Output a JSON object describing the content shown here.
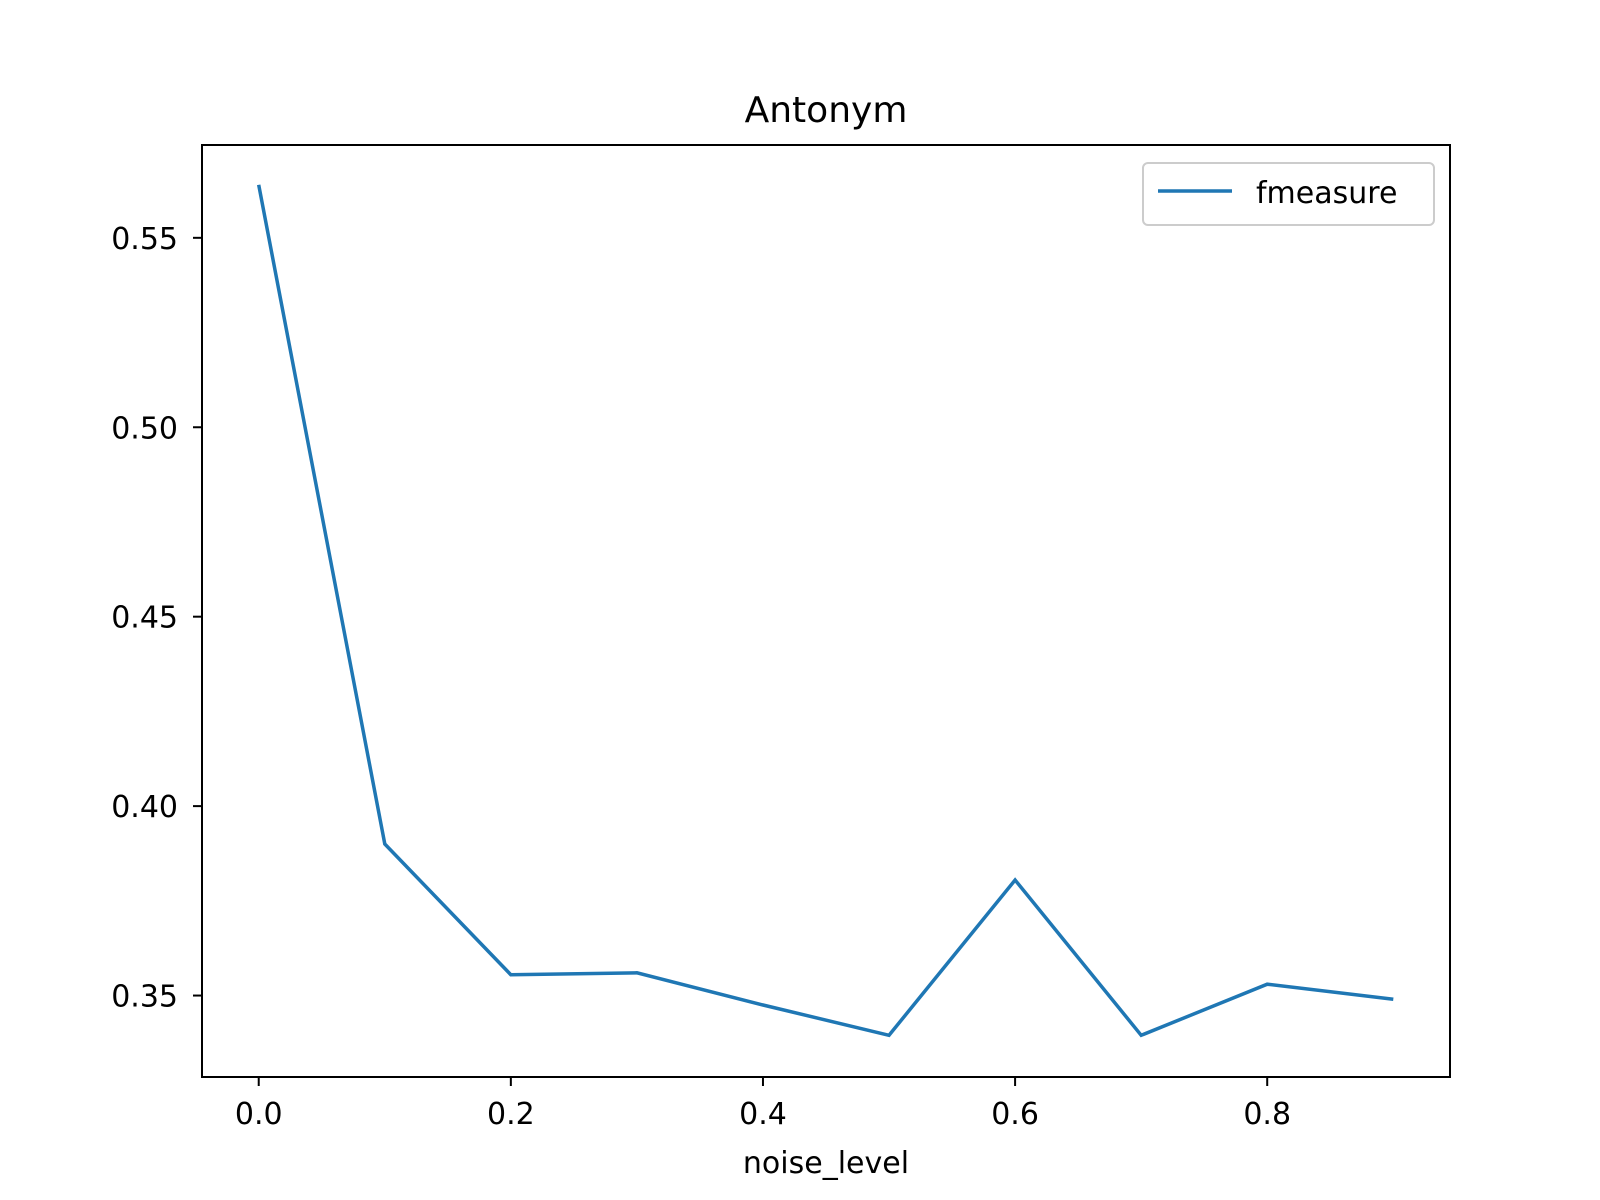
{
  "chart_data": {
    "type": "line",
    "title": "Antonym",
    "xlabel": "noise_level",
    "ylabel": "",
    "x": [
      0.0,
      0.1,
      0.2,
      0.3,
      0.4,
      0.5,
      0.6,
      0.7,
      0.8,
      0.9
    ],
    "series": [
      {
        "name": "fmeasure",
        "color": "#1f77b4",
        "values": [
          0.564,
          0.39,
          0.3555,
          0.356,
          0.3475,
          0.3395,
          0.3805,
          0.3395,
          0.353,
          0.349
        ]
      }
    ],
    "xlim": [
      -0.045,
      0.945
    ],
    "ylim": [
      0.3285,
      0.5745
    ],
    "xticks": [
      0.0,
      0.2,
      0.4,
      0.6,
      0.8
    ],
    "xtick_labels": [
      "0.0",
      "0.2",
      "0.4",
      "0.6",
      "0.8"
    ],
    "yticks": [
      0.35,
      0.4,
      0.45,
      0.5,
      0.55
    ],
    "ytick_labels": [
      "0.35",
      "0.40",
      "0.45",
      "0.50",
      "0.55"
    ],
    "grid": false,
    "legend_position": "top-right"
  }
}
